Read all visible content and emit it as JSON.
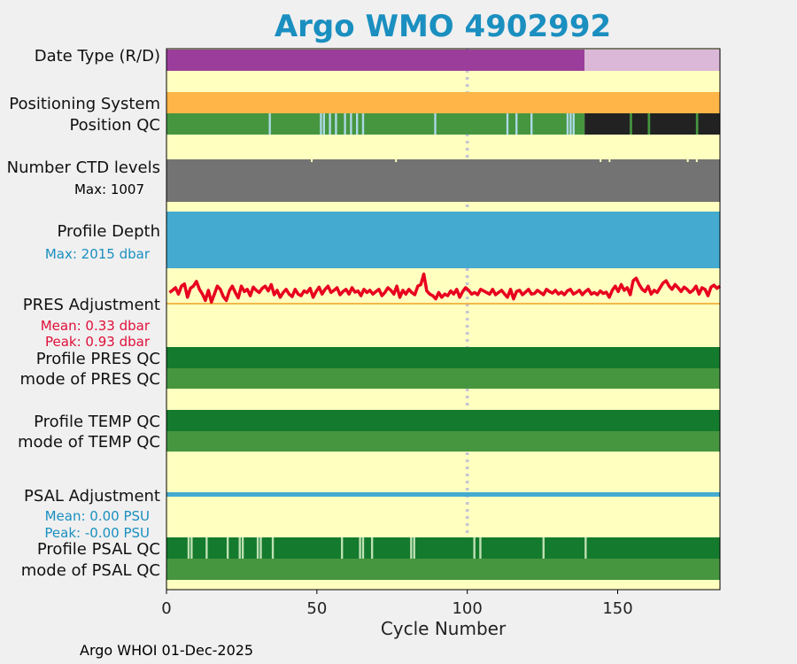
{
  "title": "Argo WMO 4902992",
  "footer": "Argo WHOI 01-Dec-2025",
  "colors": {
    "background": "#ffffc0",
    "date_real": "#9b3e9b",
    "date_delayed": "#dbb7d8",
    "positioning": "#ffb547",
    "qc_good": "#46963f",
    "qc_dark": "#147a2d",
    "qc_light": "#bfe0b4",
    "qc_cyan": "#add8e6",
    "qc_black": "#222222",
    "ctd": "#737373",
    "depth": "#44aacf",
    "pres_line": "#e8001f",
    "pres_zero": "#f0a020",
    "psal_line": "#44aacf",
    "title": "#1a8fc0",
    "dotted": "#c4c4d4"
  },
  "chart_data": {
    "type": "status-timeline",
    "xlabel": "Cycle Number",
    "xlim": [
      0,
      184
    ],
    "xticks": [
      0,
      50,
      100,
      150
    ],
    "dotted_line_x": 100,
    "rows": {
      "date_type": {
        "label": "Date Type (R/D)",
        "real_until": 139
      },
      "positioning": {
        "label": "Positioning System"
      },
      "position_qc": {
        "label": "Position QC",
        "cyan_cycles": [
          34,
          51,
          52,
          54,
          56,
          59,
          61,
          63,
          65,
          89,
          113,
          116,
          121,
          133,
          134,
          135
        ],
        "black_from": 139,
        "green_in_black": [
          154,
          160,
          176
        ]
      },
      "ctd_levels": {
        "label": "Number CTD levels",
        "max_label": "Max: 1007",
        "small_tick_cycles": [
          48,
          76,
          144,
          147,
          173,
          176
        ]
      },
      "profile_depth": {
        "label": "Profile Depth",
        "max_label": "Max: 2015 dbar"
      },
      "pres_adjustment": {
        "label": "PRES Adjustment",
        "mean_label": "Mean: 0.33 dbar",
        "peak_label": "Peak: 0.93 dbar",
        "mean": 0.33,
        "peak": 0.93
      },
      "profile_pres_qc": {
        "label": "Profile PRES QC"
      },
      "mode_pres_qc": {
        "label": "mode of PRES QC"
      },
      "profile_temp_qc": {
        "label": "Profile TEMP QC"
      },
      "mode_temp_qc": {
        "label": "mode of TEMP QC"
      },
      "psal_adjustment": {
        "label": "PSAL Adjustment",
        "mean_label": "Mean: 0.00 PSU",
        "peak_label": "Peak: -0.00 PSU",
        "mean": 0.0,
        "peak": -0.0
      },
      "profile_psal_qc": {
        "label": "Profile PSAL QC",
        "light_cycles": [
          7,
          8,
          13,
          20,
          24,
          25,
          30,
          31,
          35,
          58,
          64,
          65,
          68,
          81,
          82,
          102,
          104,
          125,
          139
        ]
      },
      "mode_psal_qc": {
        "label": "mode of PSAL QC"
      }
    },
    "pres_adjustment_series": [
      0.35,
      0.42,
      0.5,
      0.3,
      0.55,
      0.62,
      0.2,
      0.48,
      0.55,
      0.7,
      0.45,
      0.3,
      0.1,
      0.42,
      0.05,
      0.3,
      0.55,
      0.45,
      0.22,
      0.1,
      0.4,
      0.55,
      0.35,
      0.18,
      0.55,
      0.38,
      0.45,
      0.25,
      0.52,
      0.42,
      0.35,
      0.48,
      0.55,
      0.4,
      0.6,
      0.28,
      0.42,
      0.2,
      0.35,
      0.45,
      0.3,
      0.22,
      0.45,
      0.3,
      0.25,
      0.4,
      0.35,
      0.48,
      0.2,
      0.38,
      0.52,
      0.3,
      0.45,
      0.55,
      0.35,
      0.42,
      0.5,
      0.28,
      0.38,
      0.45,
      0.3,
      0.5,
      0.36,
      0.4,
      0.25,
      0.45,
      0.35,
      0.42,
      0.3,
      0.38,
      0.45,
      0.25,
      0.35,
      0.5,
      0.42,
      0.3,
      0.55,
      0.2,
      0.42,
      0.3,
      0.45,
      0.35,
      0.28,
      0.55,
      0.6,
      0.93,
      0.4,
      0.3,
      0.25,
      0.15,
      0.35,
      0.2,
      0.3,
      0.25,
      0.4,
      0.3,
      0.45,
      0.2,
      0.38,
      0.5,
      0.42,
      0.3,
      0.35,
      0.28,
      0.45,
      0.4,
      0.35,
      0.3,
      0.45,
      0.28,
      0.35,
      0.42,
      0.3,
      0.2,
      0.45,
      0.15,
      0.38,
      0.42,
      0.28,
      0.36,
      0.45,
      0.3,
      0.32,
      0.42,
      0.35,
      0.28,
      0.45,
      0.38,
      0.33,
      0.42,
      0.3,
      0.36,
      0.28,
      0.4,
      0.45,
      0.3,
      0.35,
      0.42,
      0.28,
      0.38,
      0.45,
      0.3,
      0.35,
      0.28,
      0.4,
      0.32,
      0.36,
      0.2,
      0.42,
      0.55,
      0.38,
      0.6,
      0.42,
      0.5,
      0.28,
      0.72,
      0.8,
      0.6,
      0.45,
      0.38,
      0.55,
      0.3,
      0.42,
      0.35,
      0.5,
      0.65,
      0.72,
      0.55,
      0.45,
      0.6,
      0.5,
      0.38,
      0.52,
      0.45,
      0.35,
      0.42,
      0.55,
      0.3,
      0.5,
      0.45,
      0.25,
      0.52,
      0.58,
      0.48,
      0.55
    ]
  }
}
